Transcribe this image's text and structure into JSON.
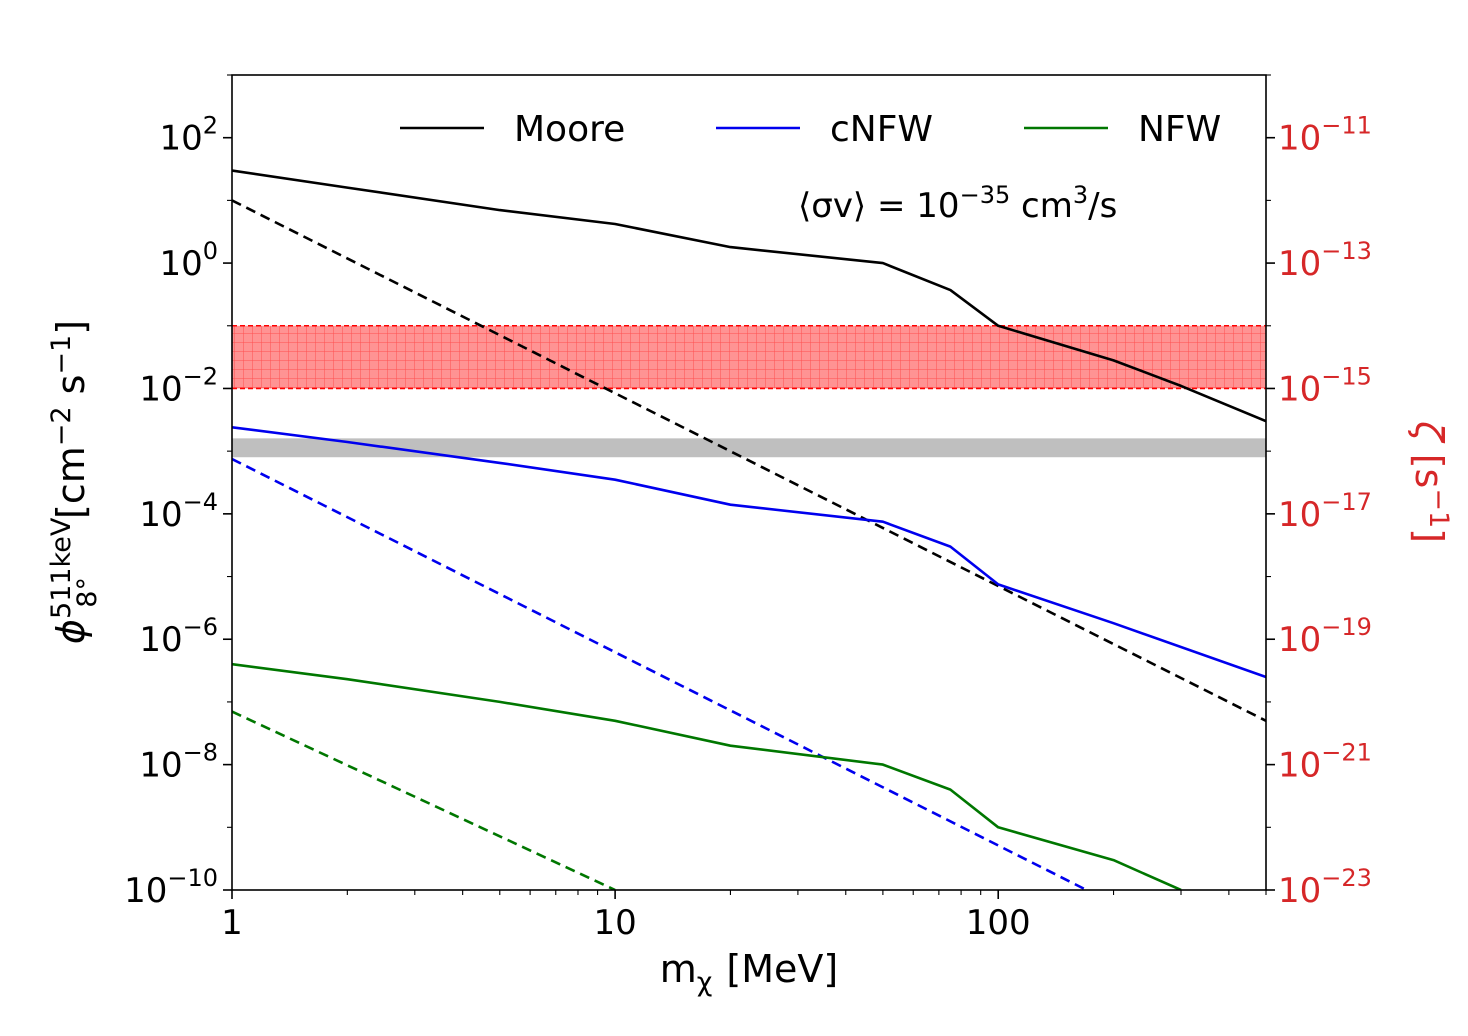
{
  "chart_data": {
    "type": "line",
    "x_scale": "log",
    "y_scale": "log",
    "xlim": [
      1,
      500
    ],
    "ylim": [
      1e-10,
      1000
    ],
    "y2lim": [
      1e-23,
      1e-10
    ],
    "grid": false,
    "legend_placement": "top",
    "xlabel": {
      "main": "m",
      "sub": "χ",
      "unit": "[MeV]"
    },
    "ylabel": {
      "main": "ϕ",
      "sup": "511keV",
      "sub": "8°",
      "unit_pre": "[cm",
      "exp1": "−2",
      "unit_mid": " s",
      "exp2": "−1",
      "unit_post": "]"
    },
    "y2label": {
      "main": "ζ",
      "unit_pre": "[s",
      "exp": "−1",
      "unit_post": "]"
    },
    "x_ticks": [
      {
        "value": 1,
        "label": "1"
      },
      {
        "value": 10,
        "label": "10"
      },
      {
        "value": 100,
        "label": "100"
      }
    ],
    "y_ticks": [
      {
        "value": 100,
        "base": "10",
        "exp": "2"
      },
      {
        "value": 1,
        "base": "10",
        "exp": "0"
      },
      {
        "value": 0.01,
        "base": "10",
        "exp": "−2"
      },
      {
        "value": 0.0001,
        "base": "10",
        "exp": "−4"
      },
      {
        "value": 1e-06,
        "base": "10",
        "exp": "−6"
      },
      {
        "value": 1e-08,
        "base": "10",
        "exp": "−8"
      },
      {
        "value": 1e-10,
        "base": "10",
        "exp": "−10"
      }
    ],
    "y2_ticks": [
      {
        "value": 1e-11,
        "base": "10",
        "exp": "−11"
      },
      {
        "value": 1e-13,
        "base": "10",
        "exp": "−13"
      },
      {
        "value": 1e-15,
        "base": "10",
        "exp": "−15"
      },
      {
        "value": 1e-17,
        "base": "10",
        "exp": "−17"
      },
      {
        "value": 1e-19,
        "base": "10",
        "exp": "−19"
      },
      {
        "value": 1e-21,
        "base": "10",
        "exp": "−21"
      },
      {
        "value": 1e-23,
        "base": "10",
        "exp": "−23"
      }
    ],
    "annotation": {
      "pre": "⟨σv⟩ = 10",
      "exp": "−35",
      "mid": " cm",
      "exp2": "3",
      "post": "/s"
    },
    "series": [
      {
        "name": "Moore",
        "legend": true,
        "color": "#000000",
        "style": "solid",
        "x": [
          1,
          2,
          5,
          10,
          20,
          50,
          75,
          100,
          200,
          300,
          500
        ],
        "y": [
          30,
          16,
          7,
          4.2,
          1.8,
          1.0,
          0.37,
          0.1,
          0.028,
          0.011,
          0.003
        ]
      },
      {
        "name": "Moore",
        "legend": false,
        "color": "#000000",
        "style": "dashed",
        "x": [
          1,
          500
        ],
        "y": [
          10,
          5e-08
        ]
      },
      {
        "name": "cNFW",
        "legend": true,
        "color": "#0000ee",
        "style": "solid",
        "x": [
          1,
          2,
          5,
          10,
          20,
          50,
          75,
          100,
          200,
          500
        ],
        "y": [
          0.0024,
          0.0014,
          0.00065,
          0.00035,
          0.00014,
          7.5e-05,
          3e-05,
          7.5e-06,
          1.8e-06,
          2.5e-07
        ]
      },
      {
        "name": "cNFW",
        "legend": false,
        "color": "#0000ee",
        "style": "dashed",
        "x": [
          1,
          170
        ],
        "y": [
          0.00075,
          1e-10
        ]
      },
      {
        "name": "NFW",
        "legend": true,
        "color": "#007700",
        "style": "solid",
        "x": [
          1,
          2,
          5,
          10,
          20,
          50,
          75,
          100,
          200,
          300
        ],
        "y": [
          4e-07,
          2.3e-07,
          1e-07,
          5e-08,
          2e-08,
          1e-08,
          4e-09,
          1e-09,
          3e-10,
          1e-10
        ]
      },
      {
        "name": "NFW",
        "legend": false,
        "color": "#007700",
        "style": "dashed",
        "x": [
          1,
          10
        ],
        "y": [
          7e-08,
          1e-10
        ]
      }
    ],
    "bands": [
      {
        "kind": "red-hatched",
        "color": "#ff0000",
        "y_range": [
          0.01,
          0.1
        ]
      },
      {
        "kind": "gray",
        "color": "#bfbfbf",
        "y_range": [
          0.0008,
          0.0016
        ]
      }
    ]
  }
}
